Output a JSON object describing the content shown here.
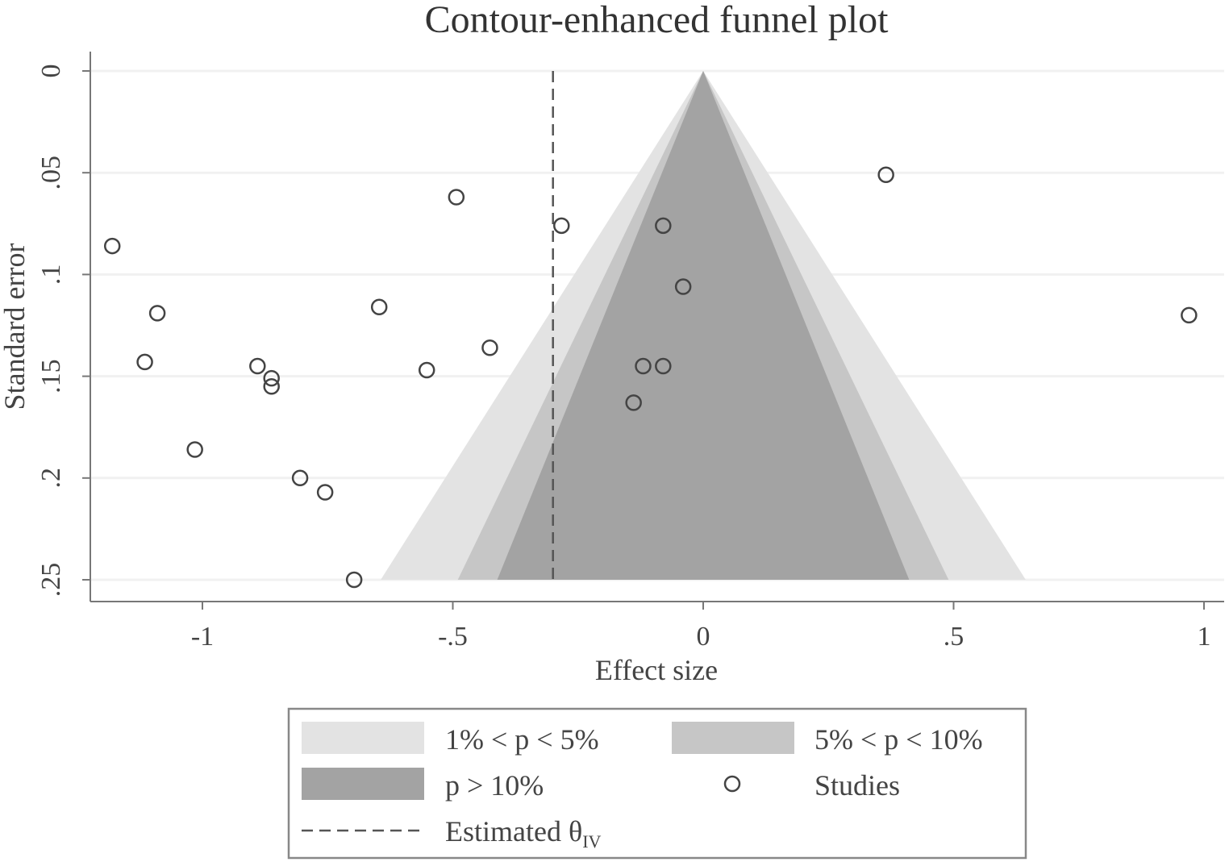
{
  "chart_data": {
    "type": "scatter",
    "title": "Contour-enhanced funnel plot",
    "xlabel": "Effect size",
    "ylabel": "Standard error",
    "xlim": [
      -1.22,
      1.04
    ],
    "ylim": [
      0,
      0.26
    ],
    "y_reversed": true,
    "x_ticks": [
      -1,
      -0.5,
      0,
      0.5,
      1
    ],
    "x_tick_labels": [
      "-1",
      "-.5",
      "0",
      ".5",
      "1"
    ],
    "y_ticks": [
      0,
      0.05,
      0.1,
      0.15,
      0.2,
      0.25
    ],
    "y_tick_labels": [
      "0",
      ".05",
      ".1",
      ".15",
      ".2",
      ".25"
    ],
    "grid": true,
    "estimated_theta": -0.3,
    "contours": [
      {
        "name": "1% < p < 5%",
        "z": 2.576,
        "color": "#e3e3e3"
      },
      {
        "name": "5% < p < 10%",
        "z": 1.96,
        "color": "#c6c6c6"
      },
      {
        "name": "p > 10%",
        "z": 1.645,
        "color": "#a3a3a3"
      }
    ],
    "contour_max_se": 0.25,
    "series": [
      {
        "name": "Studies",
        "points": [
          {
            "x": -1.18,
            "y": 0.086
          },
          {
            "x": -1.09,
            "y": 0.119
          },
          {
            "x": -1.115,
            "y": 0.143
          },
          {
            "x": -1.015,
            "y": 0.186
          },
          {
            "x": -0.89,
            "y": 0.145
          },
          {
            "x": -0.862,
            "y": 0.151
          },
          {
            "x": -0.862,
            "y": 0.155
          },
          {
            "x": -0.805,
            "y": 0.2
          },
          {
            "x": -0.755,
            "y": 0.207
          },
          {
            "x": -0.697,
            "y": 0.25
          },
          {
            "x": -0.647,
            "y": 0.116
          },
          {
            "x": -0.552,
            "y": 0.147
          },
          {
            "x": -0.493,
            "y": 0.062
          },
          {
            "x": -0.426,
            "y": 0.136
          },
          {
            "x": -0.283,
            "y": 0.076
          },
          {
            "x": -0.08,
            "y": 0.076
          },
          {
            "x": -0.04,
            "y": 0.106
          },
          {
            "x": -0.12,
            "y": 0.145
          },
          {
            "x": -0.08,
            "y": 0.145
          },
          {
            "x": -0.139,
            "y": 0.163
          },
          {
            "x": 0.365,
            "y": 0.051
          },
          {
            "x": 0.97,
            "y": 0.12
          }
        ]
      }
    ],
    "legend": {
      "placement": "bottom",
      "items": [
        {
          "kind": "area",
          "label": "1% < p < 5%",
          "color": "#e3e3e3"
        },
        {
          "kind": "area",
          "label": "5% < p < 10%",
          "color": "#c6c6c6"
        },
        {
          "kind": "area",
          "label": "p > 10%",
          "color": "#a3a3a3"
        },
        {
          "kind": "marker",
          "label": "Studies"
        },
        {
          "kind": "dash",
          "label": "Estimated θ",
          "subscript": "IV"
        }
      ]
    }
  }
}
